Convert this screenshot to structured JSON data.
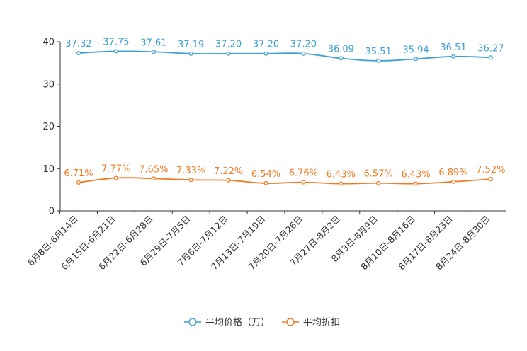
{
  "chart_data": {
    "type": "line",
    "title": "",
    "xlabel": "",
    "ylabel": "",
    "ylim": [
      0,
      40
    ],
    "yticks": [
      0,
      10,
      20,
      30,
      40
    ],
    "grid": false,
    "legend_position": "bottom-center",
    "categories": [
      "6月8日-6月14日",
      "6月15日-6月21日",
      "6月22日-6月28日",
      "6月29日-7月5日",
      "7月6日-7月12日",
      "7月13日-7月19日",
      "7月20日-7月26日",
      "7月27日-8月2日",
      "8月3日-8月9日",
      "8月10日-8月16日",
      "8月17日-8月23日",
      "8月24日-8月30日"
    ],
    "series": [
      {
        "name": "平均价格（万）",
        "color": "#3d9fd3",
        "values": [
          37.32,
          37.75,
          37.61,
          37.19,
          37.2,
          37.2,
          37.2,
          36.09,
          35.51,
          35.94,
          36.51,
          36.27
        ],
        "labels": [
          "37.32",
          "37.75",
          "37.61",
          "37.19",
          "37.20",
          "37.20",
          "37.20",
          "36.09",
          "35.51",
          "35.94",
          "36.51",
          "36.27"
        ]
      },
      {
        "name": "平均折扣",
        "color": "#f07b22",
        "values": [
          6.71,
          7.77,
          7.65,
          7.33,
          7.22,
          6.54,
          6.76,
          6.43,
          6.57,
          6.43,
          6.89,
          7.52
        ],
        "labels": [
          "6.71%",
          "7.77%",
          "7.65%",
          "7.33%",
          "7.22%",
          "6.54%",
          "6.76%",
          "6.43%",
          "6.57%",
          "6.43%",
          "6.89%",
          "7.52%"
        ]
      }
    ]
  }
}
